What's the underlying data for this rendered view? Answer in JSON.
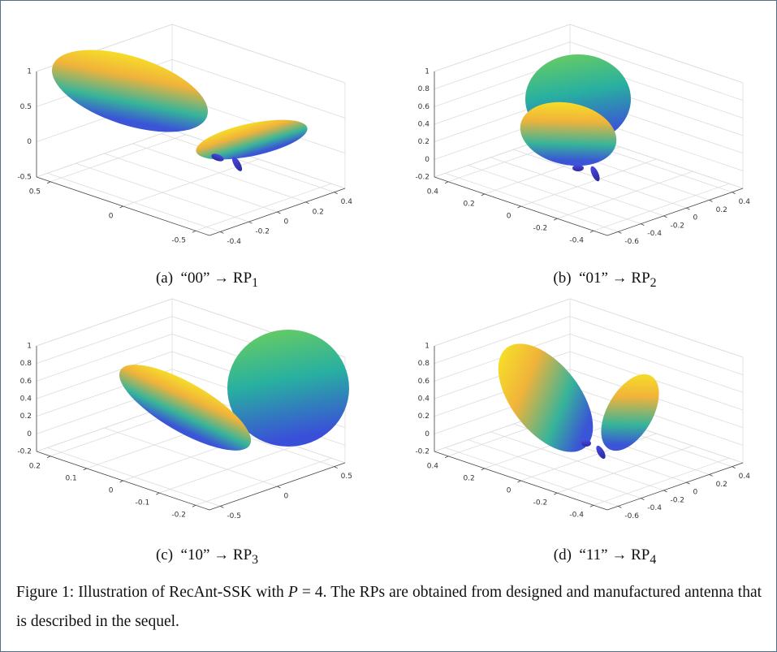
{
  "panels": [
    {
      "caption": {
        "label": "(a)",
        "text": "“00” → RP",
        "sub": "1"
      },
      "zticks": [
        1,
        0.5,
        0,
        -0.5
      ],
      "lticks": [
        0.5,
        0,
        -0.5
      ],
      "rticks": [
        -0.4,
        -0.2,
        0,
        0.2,
        0.4
      ]
    },
    {
      "caption": {
        "label": "(b)",
        "text": "“01” → RP",
        "sub": "2"
      },
      "zticks": [
        1,
        0.8,
        0.6,
        0.4,
        0.2,
        0,
        -0.2
      ],
      "lticks": [
        0.4,
        0.2,
        0,
        -0.2,
        -0.4
      ],
      "rticks": [
        -0.6,
        -0.4,
        -0.2,
        0,
        0.2,
        0.4
      ]
    },
    {
      "caption": {
        "label": "(c)",
        "text": "“10” → RP",
        "sub": "3"
      },
      "zticks": [
        1,
        0.8,
        0.6,
        0.4,
        0.2,
        0,
        -0.2
      ],
      "lticks": [
        0.2,
        0.1,
        0,
        -0.1,
        -0.2
      ],
      "rticks": [
        -0.5,
        0,
        0.5
      ]
    },
    {
      "caption": {
        "label": "(d)",
        "text": "“11” → RP",
        "sub": "4"
      },
      "zticks": [
        1,
        0.8,
        0.6,
        0.4,
        0.2,
        0,
        -0.2
      ],
      "lticks": [
        0.4,
        0.2,
        0,
        -0.2,
        -0.4
      ],
      "rticks": [
        -0.6,
        -0.4,
        -0.2,
        0,
        0.2,
        0.4
      ]
    }
  ],
  "figure_caption": {
    "prefix": "Figure 1:",
    "text1": "Illustration of RecAnt-SSK with",
    "var": "P",
    "text2": "= 4. The RPs are obtained from designed and manufactured antenna that is described in the sequel."
  }
}
